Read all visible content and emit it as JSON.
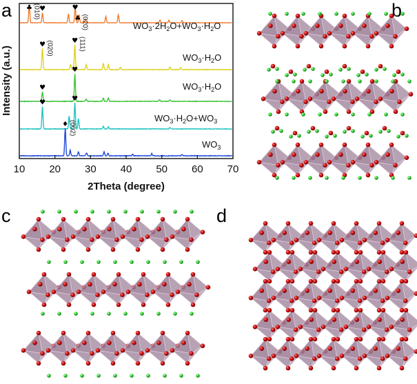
{
  "panels": {
    "a": "a",
    "b": "b",
    "c": "c",
    "d": "d"
  },
  "chart_data": {
    "type": "line",
    "title": "",
    "xlabel": "2Theta (degree)",
    "ylabel": "Intensity (a.u.)",
    "xlim": [
      10,
      70
    ],
    "xticks": [
      10,
      20,
      30,
      40,
      50,
      60,
      70
    ],
    "colors": {
      "orange": "#f07c30",
      "yellow": "#e0d221",
      "green": "#3fc43b",
      "cyan": "#1fc4c0",
      "blue": "#1f49d8"
    },
    "series": [
      {
        "name": "WO3·2H2O+WO3·H2O",
        "label_main": "WO",
        "label_parts": [
          "3",
          "·2H",
          "2",
          "O+WO",
          "3",
          "·H",
          "2",
          "O"
        ],
        "color": "#f07c30",
        "peaks": [
          [
            12.8,
            1.0
          ],
          [
            16.5,
            0.55
          ],
          [
            23.8,
            0.5
          ],
          [
            25.7,
            0.85
          ],
          [
            26.8,
            0.45
          ],
          [
            28.6,
            0.2
          ],
          [
            34.3,
            0.35
          ],
          [
            37.8,
            0.45
          ],
          [
            49.5,
            0.15
          ],
          [
            52.0,
            0.15
          ],
          [
            55.7,
            0.12
          ]
        ]
      },
      {
        "name": "WO3·H2O",
        "color": "#e0d221",
        "peaks": [
          [
            16.5,
            0.85
          ],
          [
            24.4,
            0.2
          ],
          [
            25.6,
            1.0
          ],
          [
            28.8,
            0.2
          ],
          [
            33.6,
            0.25
          ],
          [
            35.0,
            0.2
          ],
          [
            38.4,
            0.1
          ],
          [
            52.3,
            0.1
          ],
          [
            55.3,
            0.08
          ]
        ]
      },
      {
        "name": "WO3·H2O",
        "color": "#3fc43b",
        "peaks": [
          [
            16.5,
            0.35
          ],
          [
            25.6,
            1.0
          ],
          [
            28.8,
            0.08
          ],
          [
            33.6,
            0.12
          ],
          [
            35.0,
            0.12
          ],
          [
            49.4,
            0.06
          ],
          [
            52.3,
            0.06
          ]
        ]
      },
      {
        "name": "WO3·H2O+WO3",
        "color": "#1fc4c0",
        "peaks": [
          [
            16.5,
            0.85
          ],
          [
            24.0,
            0.5
          ],
          [
            25.6,
            1.0
          ],
          [
            26.6,
            0.4
          ],
          [
            33.6,
            0.1
          ],
          [
            35.0,
            0.08
          ],
          [
            52.3,
            0.05
          ]
        ]
      },
      {
        "name": "WO3",
        "color": "#1f49d8",
        "peaks": [
          [
            22.9,
            1.0
          ],
          [
            24.3,
            0.2
          ],
          [
            26.6,
            0.15
          ],
          [
            28.9,
            0.1
          ],
          [
            33.8,
            0.15
          ],
          [
            34.9,
            0.1
          ],
          [
            41.8,
            0.06
          ],
          [
            47.2,
            0.08
          ],
          [
            55.7,
            0.05
          ]
        ]
      }
    ],
    "annotations": [
      {
        "series": 0,
        "symbol": "♣",
        "x": 12.8,
        "miller": "(010)"
      },
      {
        "series": 0,
        "symbol": "♥",
        "x": 16.5,
        "miller": ""
      },
      {
        "series": 0,
        "symbol": "♥",
        "x": 25.7,
        "miller": ""
      },
      {
        "series": 0,
        "symbol": "♣",
        "x": 26.4,
        "miller": "(020)"
      },
      {
        "series": 1,
        "symbol": "♥",
        "x": 16.5,
        "miller": "(020)"
      },
      {
        "series": 1,
        "symbol": "♥",
        "x": 25.6,
        "miller": "(111)"
      },
      {
        "series": 2,
        "symbol": "♥",
        "x": 16.5,
        "miller": ""
      },
      {
        "series": 2,
        "symbol": "♥",
        "x": 25.6,
        "miller": ""
      },
      {
        "series": 3,
        "symbol": "♥",
        "x": 16.5,
        "miller": ""
      },
      {
        "series": 3,
        "symbol": "♥",
        "x": 25.6,
        "miller": ""
      },
      {
        "series": 4,
        "symbol": "♦",
        "x": 22.9,
        "miller": "(002)"
      }
    ]
  },
  "structure_colors": {
    "octahedron": "#9a7c95",
    "oxygen": "#d01515",
    "hydrogen": "#33dd33"
  }
}
